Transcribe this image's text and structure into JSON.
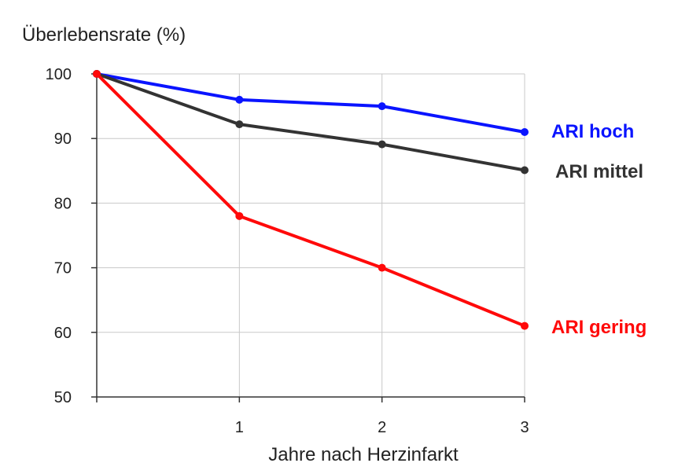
{
  "chart_data": {
    "type": "line",
    "ylabel": "Überlebensrate  (%)",
    "xlabel": "Jahre nach Herzinfarkt",
    "x": [
      0,
      1,
      2,
      3
    ],
    "x_tick_labels": [
      "1",
      "2",
      "3"
    ],
    "y_tick_labels": [
      "100",
      "90",
      "80",
      "70",
      "60",
      "50"
    ],
    "xlim": [
      0,
      3
    ],
    "ylim": [
      50,
      100
    ],
    "grid": true,
    "series": [
      {
        "name": "ARI hoch",
        "color": "#0a14ff",
        "values": [
          100,
          96,
          95,
          91
        ]
      },
      {
        "name": "ARI mittel",
        "color": "#333333",
        "values": [
          100,
          92.2,
          89.1,
          85.1
        ]
      },
      {
        "name": "ARI gering",
        "color": "#ff0a0a",
        "values": [
          100,
          78,
          70,
          61
        ]
      }
    ]
  }
}
